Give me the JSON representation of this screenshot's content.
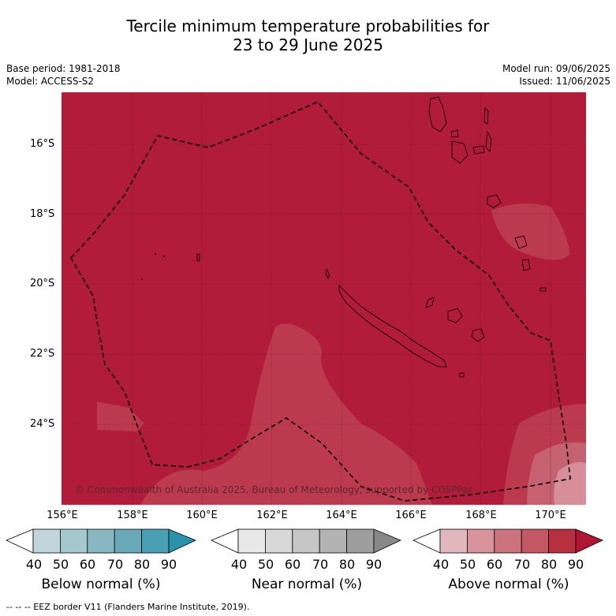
{
  "title_line1": "Tercile minimum temperature probabilities for",
  "title_line2": "23 to 29 June 2025",
  "base_period": "Base period: 1981-2018",
  "model": "Model: ACCESS-S2",
  "model_run": "Model run: 09/06/2025",
  "issued": "Issued: 11/06/2025",
  "lat_ticks": [
    "16°S",
    "18°S",
    "20°S",
    "22°S",
    "24°S"
  ],
  "lon_ticks": [
    "156°E",
    "158°E",
    "160°E",
    "162°E",
    "164°E",
    "166°E",
    "168°E",
    "170°E"
  ],
  "copyright": "© Commonwealth of Australia 2025, Bureau of Meteorology, supported by COSPPac",
  "colorbars": [
    {
      "label": "Below normal (%)",
      "ticks": [
        "40",
        "50",
        "60",
        "70",
        "80",
        "90"
      ],
      "colors": [
        "#ffffff",
        "#c1d5db",
        "#a5c7ce",
        "#89b7c2",
        "#6aa9b7",
        "#48a0b2",
        "#2a92aa"
      ]
    },
    {
      "label": "Near normal (%)",
      "ticks": [
        "40",
        "50",
        "60",
        "70",
        "80",
        "90"
      ],
      "colors": [
        "#ffffff",
        "#e8e8e8",
        "#d8d8d8",
        "#c6c6c6",
        "#b3b3b3",
        "#9e9e9e",
        "#888888"
      ]
    },
    {
      "label": "Above normal (%)",
      "ticks": [
        "40",
        "50",
        "60",
        "70",
        "80",
        "90"
      ],
      "colors": [
        "#ffffff",
        "#e2b6bd",
        "#d8939d",
        "#cc737f",
        "#c45764",
        "#b7303f",
        "#b01533"
      ]
    }
  ],
  "footer": "--  --  -- EEZ border V11 (Flanders Marine Institute, 2019).",
  "map_colors": {
    "dominant": "#b01c3a",
    "lower_band": "#bc3a4e",
    "lowest_band": "#c56170",
    "highest_bin": "#d68f99"
  }
}
